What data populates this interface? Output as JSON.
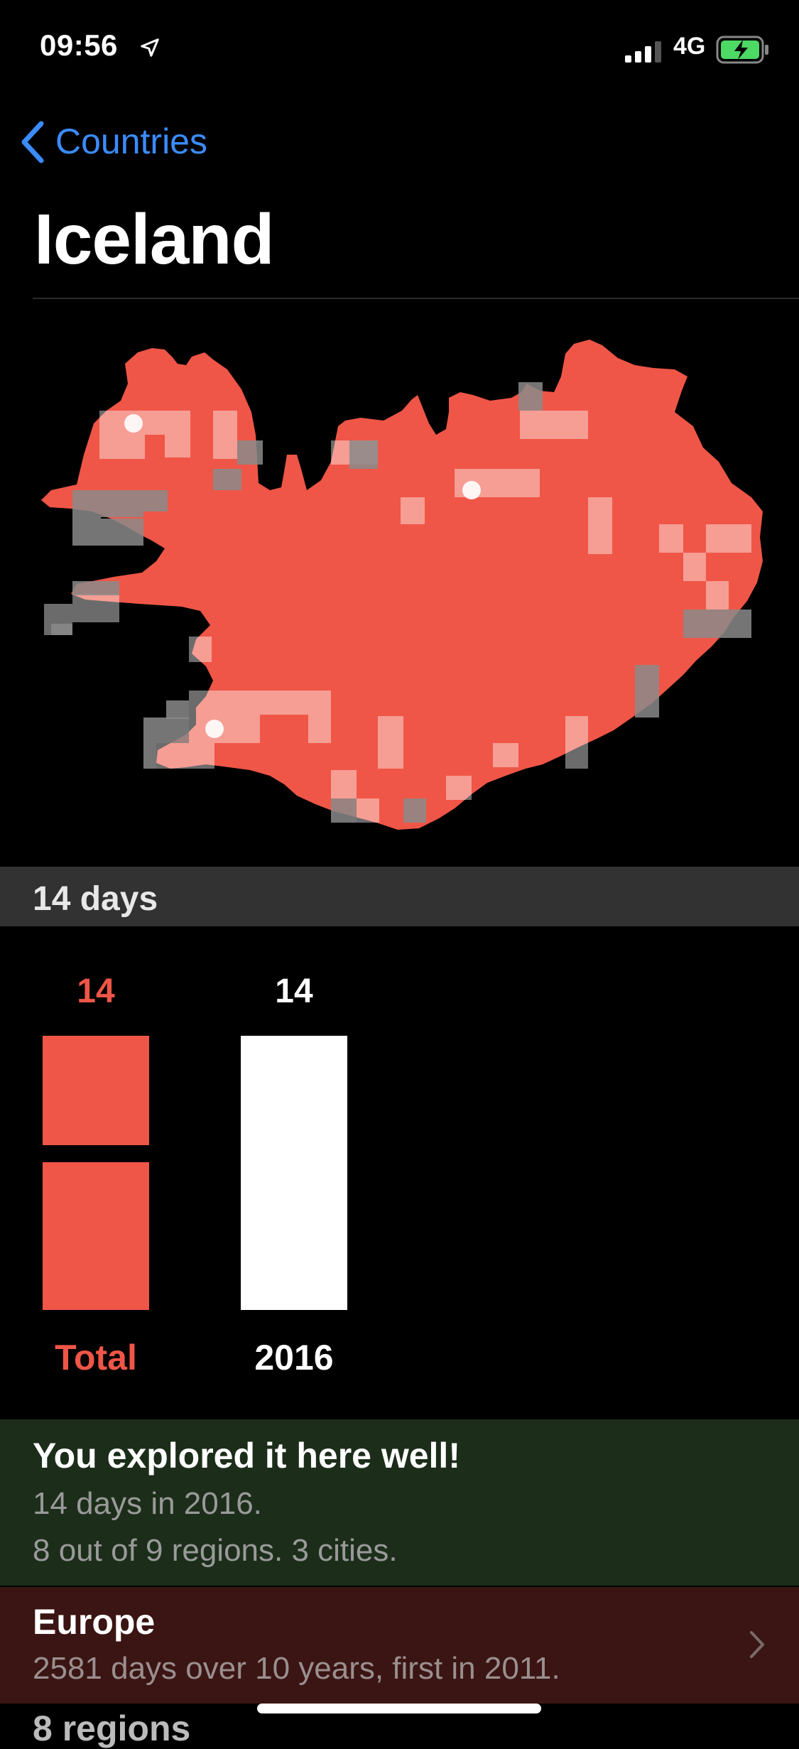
{
  "status_bar": {
    "time": "09:56",
    "network": "4G",
    "icons": [
      "location-arrow-icon",
      "signal-bars-icon",
      "battery-charging-icon"
    ]
  },
  "nav": {
    "back_label": "Countries",
    "title": "Iceland"
  },
  "summary": {
    "days_label": "14 days"
  },
  "chart_data": {
    "type": "bar",
    "categories": [
      "Total",
      "2016"
    ],
    "values": [
      14,
      14
    ],
    "ylim": [
      0,
      14
    ],
    "colors": {
      "total": "#ef5647",
      "year": "#ffffff"
    },
    "value_labels": [
      "14",
      "14"
    ]
  },
  "explored": {
    "title": "You explored it here well!",
    "line1": "14 days in 2016.",
    "line2": "8 out of 9 regions. 3 cities."
  },
  "continent": {
    "title": "Europe",
    "subtitle": "2581 days over 10 years, first in 2011."
  },
  "regions_row": {
    "label": "8 regions"
  },
  "colors": {
    "accent_blue": "#3b8cff",
    "map_red": "#ef5647",
    "explored_bg": "#1c2e1a",
    "europe_bg": "#3b1513"
  }
}
